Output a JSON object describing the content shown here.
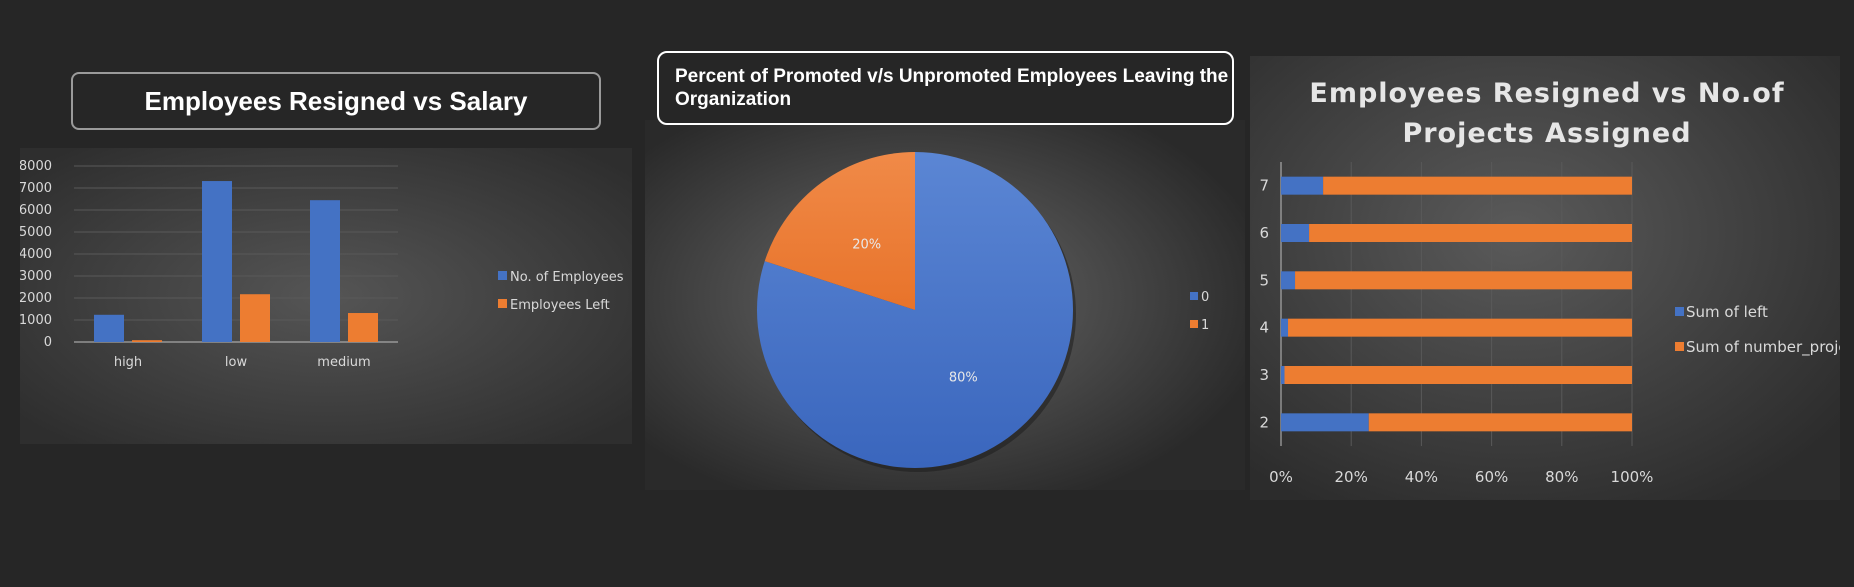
{
  "colors": {
    "blue": "#4472c4",
    "orange": "#ed7d31",
    "text": "#d9d9d9",
    "grid": "#595959"
  },
  "charts": [
    {
      "title": "Employees Resigned vs Salary",
      "chart_data": {
        "type": "bar",
        "categories": [
          "high",
          "low",
          "medium"
        ],
        "series": [
          {
            "name": "No. of Employees",
            "values": [
              1237,
              7316,
              6446
            ]
          },
          {
            "name": "Employees Left",
            "values": [
              82,
              2172,
              1317
            ]
          }
        ],
        "yticks": [
          "0",
          "1000",
          "2000",
          "3000",
          "4000",
          "5000",
          "6000",
          "7000",
          "8000"
        ],
        "ylim": [
          0,
          8000
        ],
        "legend": "right"
      }
    },
    {
      "title": "Percent of Promoted v/s Unpromoted Employees Leaving the Organization",
      "chart_data": {
        "type": "pie",
        "labels": [
          "0",
          "1"
        ],
        "values": [
          80,
          20
        ],
        "data_labels": [
          "80%",
          "20%"
        ],
        "legend": "right"
      }
    },
    {
      "title_lines": [
        "Employees Resigned vs No.of",
        "Projects Assigned"
      ],
      "chart_data": {
        "type": "bar",
        "orientation": "horizontal",
        "stacked": "percent",
        "categories": [
          "2",
          "3",
          "4",
          "5",
          "6",
          "7"
        ],
        "series": [
          {
            "name": "Sum of left",
            "values": [
              25,
              1,
              2,
              4,
              8,
              12
            ]
          },
          {
            "name": "Sum of number_project",
            "values": [
              75,
              99,
              98,
              96,
              92,
              88
            ]
          }
        ],
        "xticks": [
          "0%",
          "20%",
          "40%",
          "60%",
          "80%",
          "100%"
        ],
        "xlim": [
          0,
          100
        ],
        "legend": "right"
      }
    }
  ]
}
